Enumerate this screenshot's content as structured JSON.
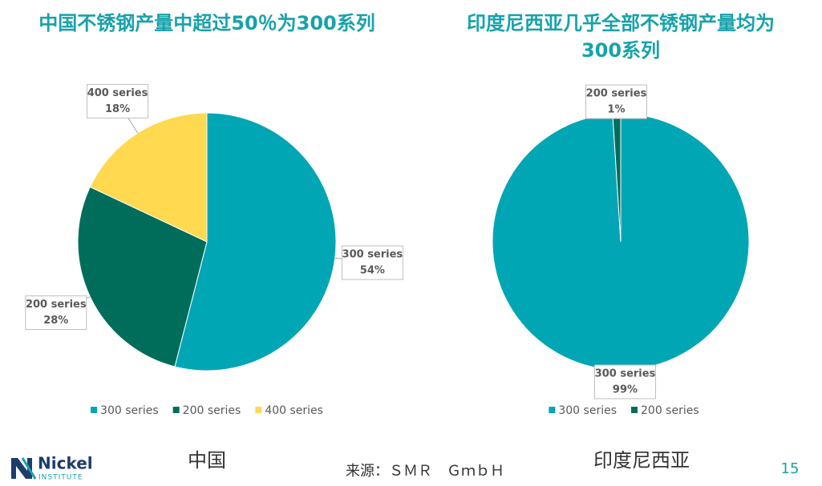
{
  "chart_data": [
    {
      "type": "pie",
      "title": "中国不锈钢产量中超过50％为300系列",
      "categories": [
        "300 series",
        "200 series",
        "400 series"
      ],
      "values": [
        54,
        28,
        18
      ],
      "value_labels": [
        "54%",
        "28%",
        "18%"
      ],
      "colors": [
        "#00a6b4",
        "#006d5b",
        "#ffd94f"
      ],
      "legend": "bottom"
    },
    {
      "type": "pie",
      "title": "印度尼西亚几乎全部不锈钢产量均为300系列",
      "categories": [
        "300 series",
        "200 series"
      ],
      "values": [
        99,
        1
      ],
      "value_labels": [
        "99%",
        "1%"
      ],
      "colors": [
        "#00a6b4",
        "#006d5b"
      ],
      "legend": "bottom"
    }
  ],
  "captions": [
    "中国",
    "印度尼西亚"
  ],
  "source": "来源：ＳＭＲ　ＧｍｂＨ",
  "page_number": "15",
  "logo": {
    "name": "Nickel",
    "subtitle": "INSTITUTE"
  }
}
